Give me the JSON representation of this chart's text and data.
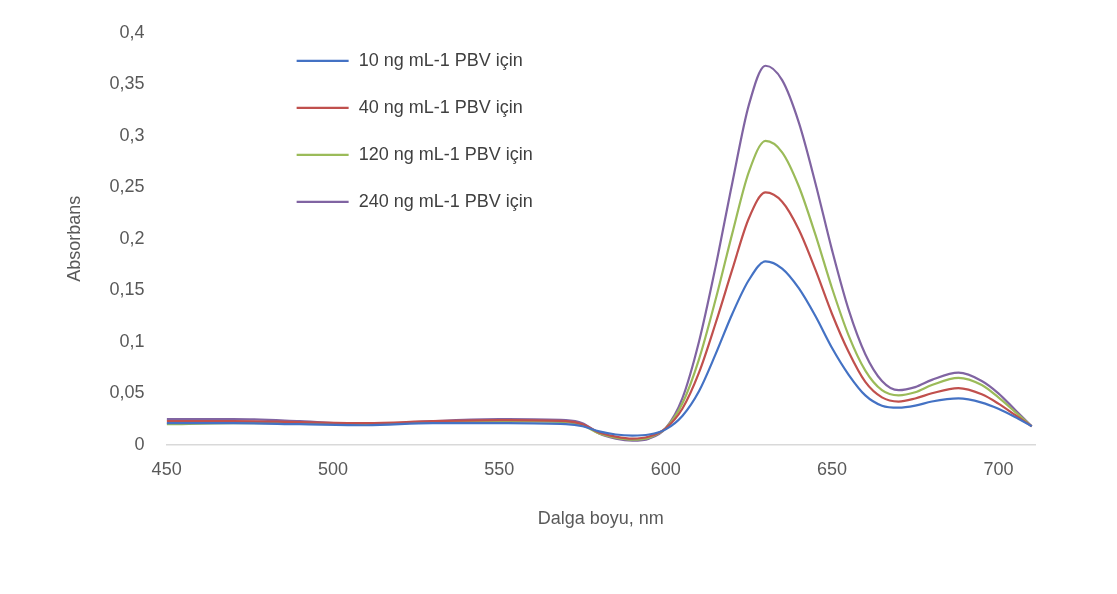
{
  "chart_data": {
    "type": "line",
    "xlabel": "Dalga boyu, nm",
    "ylabel": "Absorbans",
    "x": [
      450,
      470,
      490,
      510,
      530,
      550,
      570,
      575,
      580,
      585,
      590,
      595,
      600,
      605,
      610,
      615,
      620,
      625,
      630,
      635,
      640,
      645,
      650,
      655,
      660,
      665,
      670,
      675,
      680,
      688,
      695,
      700,
      705,
      710
    ],
    "series": [
      {
        "name": "10 ng mL-1 PBV için",
        "color": "#4472c4",
        "values": [
          0.021,
          0.021,
          0.02,
          0.019,
          0.021,
          0.021,
          0.02,
          0.018,
          0.013,
          0.01,
          0.009,
          0.01,
          0.015,
          0.028,
          0.052,
          0.088,
          0.127,
          0.16,
          0.178,
          0.171,
          0.152,
          0.125,
          0.094,
          0.068,
          0.048,
          0.038,
          0.036,
          0.038,
          0.042,
          0.045,
          0.041,
          0.035,
          0.027,
          0.018
        ]
      },
      {
        "name": "40 ng mL-1 PBV için",
        "color": "#c0504d",
        "values": [
          0.023,
          0.023,
          0.022,
          0.021,
          0.023,
          0.024,
          0.023,
          0.02,
          0.012,
          0.008,
          0.006,
          0.008,
          0.016,
          0.035,
          0.07,
          0.118,
          0.17,
          0.22,
          0.245,
          0.236,
          0.209,
          0.17,
          0.127,
          0.09,
          0.061,
          0.046,
          0.042,
          0.045,
          0.05,
          0.055,
          0.049,
          0.04,
          0.029,
          0.018
        ]
      },
      {
        "name": "120 ng mL-1 PBV için",
        "color": "#9bbb59",
        "values": [
          0.02,
          0.021,
          0.021,
          0.02,
          0.022,
          0.023,
          0.022,
          0.019,
          0.011,
          0.007,
          0.005,
          0.007,
          0.016,
          0.04,
          0.083,
          0.141,
          0.205,
          0.265,
          0.295,
          0.284,
          0.251,
          0.204,
          0.152,
          0.106,
          0.072,
          0.053,
          0.048,
          0.051,
          0.058,
          0.065,
          0.058,
          0.046,
          0.032,
          0.018
        ]
      },
      {
        "name": "240 ng mL-1 PBV için",
        "color": "#8064a2",
        "values": [
          0.025,
          0.025,
          0.023,
          0.02,
          0.023,
          0.025,
          0.024,
          0.021,
          0.011,
          0.006,
          0.004,
          0.006,
          0.016,
          0.045,
          0.1,
          0.173,
          0.254,
          0.33,
          0.368,
          0.354,
          0.313,
          0.254,
          0.189,
          0.131,
          0.088,
          0.062,
          0.053,
          0.056,
          0.063,
          0.07,
          0.062,
          0.05,
          0.034,
          0.018
        ]
      }
    ],
    "xlim": [
      450,
      711
    ],
    "xticks": [
      450,
      500,
      550,
      600,
      650,
      700
    ],
    "ylim": [
      0,
      0.4
    ],
    "yticks": [
      0,
      {
        "value": 0.05,
        "label": "0,05"
      },
      {
        "value": 0.1,
        "label": "0,1"
      },
      {
        "value": 0.15,
        "label": "0,15"
      },
      {
        "value": 0.2,
        "label": "0,2"
      },
      {
        "value": 0.25,
        "label": "0,25"
      },
      {
        "value": 0.3,
        "label": "0,3"
      },
      {
        "value": 0.35,
        "label": "0,35"
      },
      {
        "value": 0.4,
        "label": "0,4"
      }
    ],
    "grid": false,
    "legend": "top left",
    "marker": "none",
    "line_style": "solid"
  }
}
